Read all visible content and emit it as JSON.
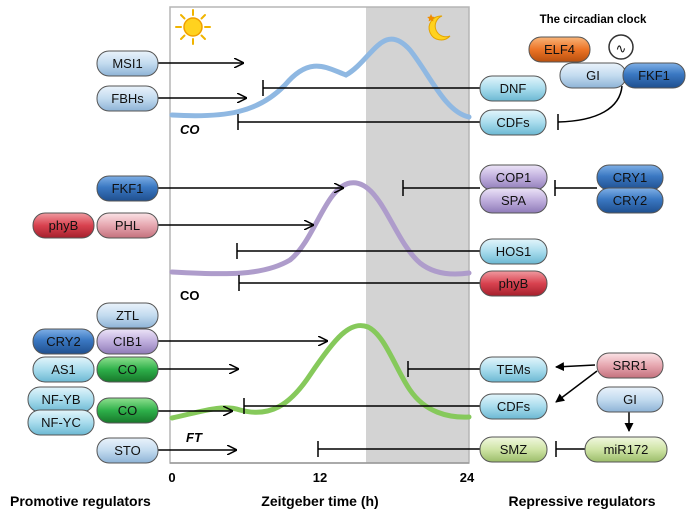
{
  "title": "The circadian clock",
  "x_axis": {
    "label": "Zeitgeber time (h)",
    "ticks": [
      "0",
      "12",
      "24"
    ]
  },
  "footer": {
    "promotive": "Promotive regulators",
    "repressive": "Repressive regulators"
  },
  "curve_labels": {
    "co_top": "CO",
    "co_mid": "CO",
    "ft": "FT"
  },
  "day_icon": "sun-icon",
  "night_icon": "moon-icon",
  "colors": {
    "blue_dark": "#3a78c2",
    "blue_light": "#bcd8f0",
    "teal": "#a6dcec",
    "purple": "#b7a4d6",
    "pink": "#e4a3ad",
    "red": "#d8424f",
    "green": "#38b549",
    "lime": "#cde4a5",
    "orange": "#ec7426",
    "curve_blue": "#8fb8e2",
    "curve_purple": "#ae9ccb",
    "curve_green": "#86c95b",
    "night_shade": "#d2d2d2"
  },
  "clock": {
    "elf4": "ELF4",
    "gi": "GI",
    "fkf1": "FKF1",
    "oscillator": "∿"
  },
  "promotive": {
    "msi1": "MSI1",
    "fbhs": "FBHs",
    "fkf1": "FKF1",
    "phyb": "phyB",
    "phl": "PHL",
    "ztl": "ZTL",
    "cry2": "CRY2",
    "cib1": "CIB1",
    "as1": "AS1",
    "co_a": "CO",
    "nfyb": "NF-YB",
    "nfyc": "NF-YC",
    "co_b": "CO",
    "sto": "STO"
  },
  "repressive": {
    "dnf": "DNF",
    "cdfs_top": "CDFs",
    "cop1": "COP1",
    "spa": "SPA",
    "cry1": "CRY1",
    "cry2": "CRY2",
    "hos1": "HOS1",
    "phyb": "phyB",
    "tems": "TEMs",
    "srr1": "SRR1",
    "cdfs_bottom": "CDFs",
    "gi": "GI",
    "smz": "SMZ",
    "mir172": "miR172"
  }
}
